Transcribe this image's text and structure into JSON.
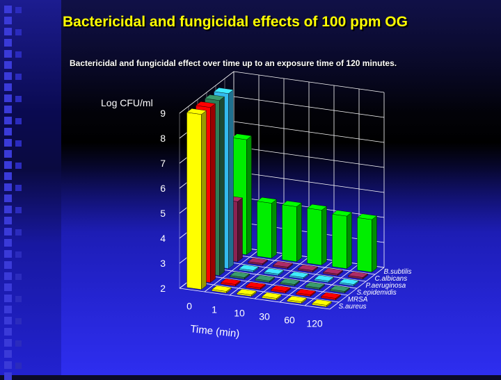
{
  "slide": {
    "title": "Bactericidal and fungicidal effects of 100 ppm OG",
    "subtitle": "Bactericidal and fungicidal effect over time up to an exposure time of 120 minutes."
  },
  "chart_data": {
    "type": "bar",
    "style": "3d-clustered",
    "ylabel": "Log CFU/ml",
    "xlabel": "Time (min)",
    "ylim": [
      2,
      9
    ],
    "yticks": [
      "2",
      "3",
      "4",
      "5",
      "6",
      "7",
      "8",
      "9"
    ],
    "categories": [
      "0",
      "1",
      "10",
      "30",
      "60",
      "120"
    ],
    "series": [
      {
        "name": "S.aureus",
        "color": "#ffff00",
        "values": [
          9.0,
          2.0,
          2.0,
          2.0,
          2.0,
          2.0
        ]
      },
      {
        "name": "MRSA",
        "color": "#ff0000",
        "values": [
          9.0,
          2.0,
          2.0,
          2.0,
          2.0,
          2.0
        ]
      },
      {
        "name": "S.epidemidis",
        "color": "#2e7d57",
        "values": [
          9.0,
          2.0,
          2.0,
          2.0,
          2.0,
          2.0
        ]
      },
      {
        "name": "P.aeruginosa",
        "color": "#33bbee",
        "values": [
          9.0,
          2.0,
          2.0,
          2.0,
          2.0,
          2.0
        ]
      },
      {
        "name": "C.albicans",
        "color": "#8b2252",
        "values": [
          4.4,
          2.0,
          2.0,
          2.0,
          2.0,
          2.0
        ]
      },
      {
        "name": "B.subtilis",
        "color": "#00ee00",
        "values": [
          6.6,
          4.2,
          4.2,
          4.2,
          4.1,
          4.1
        ]
      }
    ],
    "grid": true,
    "legend": "depth-axis"
  }
}
